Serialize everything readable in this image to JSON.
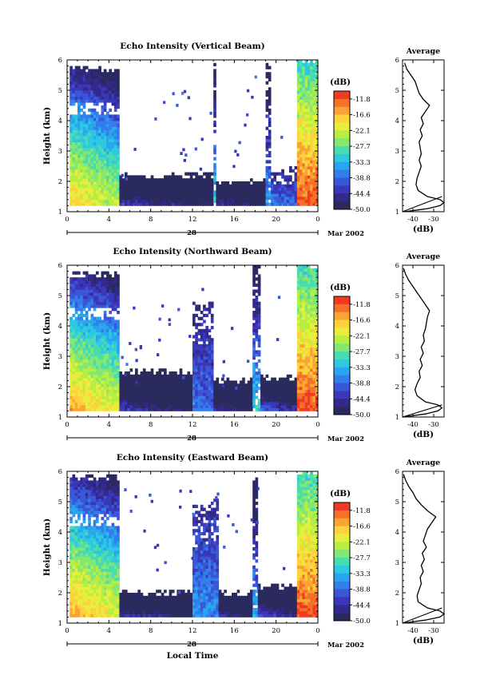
{
  "colorbar": {
    "unit": "(dB)",
    "labels": [
      "-11.8",
      "-16.6",
      "-22.1",
      "-27.7",
      "-33.3",
      "-38.8",
      "-44.4",
      "-50.0"
    ],
    "colors": [
      "#f03a22",
      "#f7702a",
      "#fba334",
      "#fdd23c",
      "#e7ee3c",
      "#b7ee42",
      "#82e775",
      "#48dcae",
      "#2cc9e0",
      "#2aa6ee",
      "#327eec",
      "#3957d8",
      "#3a38b8",
      "#33298c",
      "#2a2a5e"
    ]
  },
  "x_axis": {
    "ticks": [
      "0",
      "4",
      "8",
      "12",
      "16",
      "20",
      "0"
    ],
    "day_label": "28",
    "date_label": "Mar 2002",
    "xlabel": "Local Time"
  },
  "chart_data": [
    {
      "type": "heatmap",
      "title": "Echo Intensity (Vertical Beam)",
      "ylabel": "Height (km)",
      "xlim": [
        0,
        24
      ],
      "ylim": [
        1,
        6
      ],
      "y_ticks": [
        "1",
        "2",
        "3",
        "4",
        "5",
        "6"
      ],
      "z_range_dB": [
        -50.0,
        -11.8
      ],
      "echo_regions": [
        {
          "hours": [
            0.3,
            5.0
          ],
          "top_km": 5.7,
          "peak_dB": -20
        },
        {
          "hours": [
            5.0,
            14.0
          ],
          "top_km": 2.2,
          "peak_dB": -44
        },
        {
          "hours": [
            14.0,
            14.3
          ],
          "top_km": 5.8,
          "peak_dB": -33
        },
        {
          "hours": [
            14.3,
            19.0
          ],
          "top_km": 2.0,
          "peak_dB": -45
        },
        {
          "hours": [
            19.0,
            19.4
          ],
          "top_km": 5.8,
          "peak_dB": -36
        },
        {
          "hours": [
            19.4,
            22.0
          ],
          "top_km": 2.4,
          "peak_dB": -40
        },
        {
          "hours": [
            22.0,
            24.0
          ],
          "top_km": 6.0,
          "peak_dB": -12
        }
      ],
      "average": {
        "title": "Average",
        "xlabel": "(dB)",
        "x_ticks": [
          "-40",
          "-30"
        ],
        "xlim": [
          -45,
          -25
        ],
        "ylim": [
          1,
          6
        ],
        "heights_km": [
          1.0,
          1.1,
          1.2,
          1.3,
          1.4,
          1.5,
          1.7,
          1.9,
          2.1,
          2.3,
          2.5,
          2.7,
          2.9,
          3.1,
          3.3,
          3.5,
          3.7,
          3.9,
          4.1,
          4.3,
          4.5,
          4.7,
          4.9,
          5.1,
          5.3,
          5.5,
          5.7,
          5.9
        ],
        "mean_dB": [
          -44,
          -33,
          -27,
          -25,
          -27,
          -33,
          -37.5,
          -38.5,
          -38,
          -37,
          -36,
          -37,
          -36,
          -36.5,
          -37,
          -35.5,
          -36.5,
          -35,
          -36,
          -34,
          -32,
          -35,
          -37,
          -38,
          -39,
          -41,
          -43,
          -44
        ],
        "line_dB": [
          [
            -45,
            1.0
          ],
          [
            -26,
            1.5
          ]
        ]
      }
    },
    {
      "type": "heatmap",
      "title": "Echo Intensity (Northward Beam)",
      "ylabel": "Height (km)",
      "xlim": [
        0,
        24
      ],
      "ylim": [
        1,
        6
      ],
      "y_ticks": [
        "1",
        "2",
        "3",
        "4",
        "5",
        "6"
      ],
      "z_range_dB": [
        -50.0,
        -11.8
      ],
      "echo_regions": [
        {
          "hours": [
            0.3,
            5.0
          ],
          "top_km": 5.7,
          "peak_dB": -18
        },
        {
          "hours": [
            5.0,
            12.0
          ],
          "top_km": 2.5,
          "peak_dB": -44
        },
        {
          "hours": [
            12.0,
            14.0
          ],
          "top_km": 4.8,
          "peak_dB": -40
        },
        {
          "hours": [
            14.0,
            17.8
          ],
          "top_km": 2.2,
          "peak_dB": -45
        },
        {
          "hours": [
            17.8,
            18.4
          ],
          "top_km": 6.0,
          "peak_dB": -33
        },
        {
          "hours": [
            18.4,
            22.0
          ],
          "top_km": 2.3,
          "peak_dB": -40
        },
        {
          "hours": [
            22.0,
            24.0
          ],
          "top_km": 6.0,
          "peak_dB": -12
        }
      ],
      "average": {
        "title": "Average",
        "xlabel": "(dB)",
        "x_ticks": [
          "-40",
          "-30"
        ],
        "xlim": [
          -45,
          -25
        ],
        "ylim": [
          1,
          6
        ],
        "heights_km": [
          1.0,
          1.1,
          1.2,
          1.3,
          1.4,
          1.5,
          1.7,
          1.9,
          2.1,
          2.3,
          2.5,
          2.7,
          2.9,
          3.1,
          3.3,
          3.5,
          3.7,
          3.9,
          4.1,
          4.3,
          4.5,
          4.7,
          4.9,
          5.1,
          5.3,
          5.5,
          5.7,
          5.9
        ],
        "mean_dB": [
          -45,
          -34,
          -28,
          -26,
          -28,
          -34,
          -38,
          -39,
          -38,
          -36.5,
          -37,
          -35.5,
          -36.5,
          -35,
          -36,
          -34.5,
          -35,
          -34,
          -33.5,
          -33,
          -32,
          -34,
          -36,
          -38,
          -40,
          -42,
          -43.5,
          -44.5
        ],
        "line_dB": [
          [
            -45,
            1.0
          ],
          [
            -26,
            1.4
          ]
        ]
      }
    },
    {
      "type": "heatmap",
      "title": "Echo Intensity (Eastward Beam)",
      "ylabel": "Height (km)",
      "xlim": [
        0,
        24
      ],
      "ylim": [
        1,
        6
      ],
      "y_ticks": [
        "1",
        "2",
        "3",
        "4",
        "5",
        "6"
      ],
      "z_range_dB": [
        -50.0,
        -11.8
      ],
      "echo_regions": [
        {
          "hours": [
            0.3,
            5.0
          ],
          "top_km": 5.8,
          "peak_dB": -18
        },
        {
          "hours": [
            5.0,
            12.0
          ],
          "top_km": 2.0,
          "peak_dB": -44
        },
        {
          "hours": [
            12.0,
            14.4
          ],
          "top_km": 5.0,
          "peak_dB": -38
        },
        {
          "hours": [
            14.4,
            17.8
          ],
          "top_km": 2.0,
          "peak_dB": -45
        },
        {
          "hours": [
            17.8,
            18.3
          ],
          "top_km": 5.8,
          "peak_dB": -35
        },
        {
          "hours": [
            18.3,
            22.0
          ],
          "top_km": 2.2,
          "peak_dB": -42
        },
        {
          "hours": [
            22.0,
            24.0
          ],
          "top_km": 6.0,
          "peak_dB": -12
        }
      ],
      "average": {
        "title": "Average",
        "xlabel": "(dB)",
        "x_ticks": [
          "-40",
          "-30"
        ],
        "xlim": [
          -45,
          -25
        ],
        "ylim": [
          1,
          6
        ],
        "heights_km": [
          1.0,
          1.1,
          1.2,
          1.3,
          1.4,
          1.5,
          1.7,
          1.9,
          2.1,
          2.3,
          2.5,
          2.7,
          2.9,
          3.1,
          3.3,
          3.5,
          3.7,
          3.9,
          4.1,
          4.3,
          4.5,
          4.7,
          4.9,
          5.1,
          5.3,
          5.5,
          5.7,
          5.9
        ],
        "mean_dB": [
          -45,
          -34,
          -27,
          -25,
          -27,
          -33,
          -37.5,
          -38,
          -37,
          -36,
          -36.5,
          -35,
          -36,
          -34.5,
          -35.5,
          -33.5,
          -35,
          -34,
          -33,
          -31,
          -29,
          -33,
          -36,
          -38.5,
          -40,
          -42,
          -43.5,
          -44.5
        ],
        "line_dB": [
          [
            -45,
            1.0
          ],
          [
            -26,
            1.5
          ]
        ]
      }
    }
  ]
}
